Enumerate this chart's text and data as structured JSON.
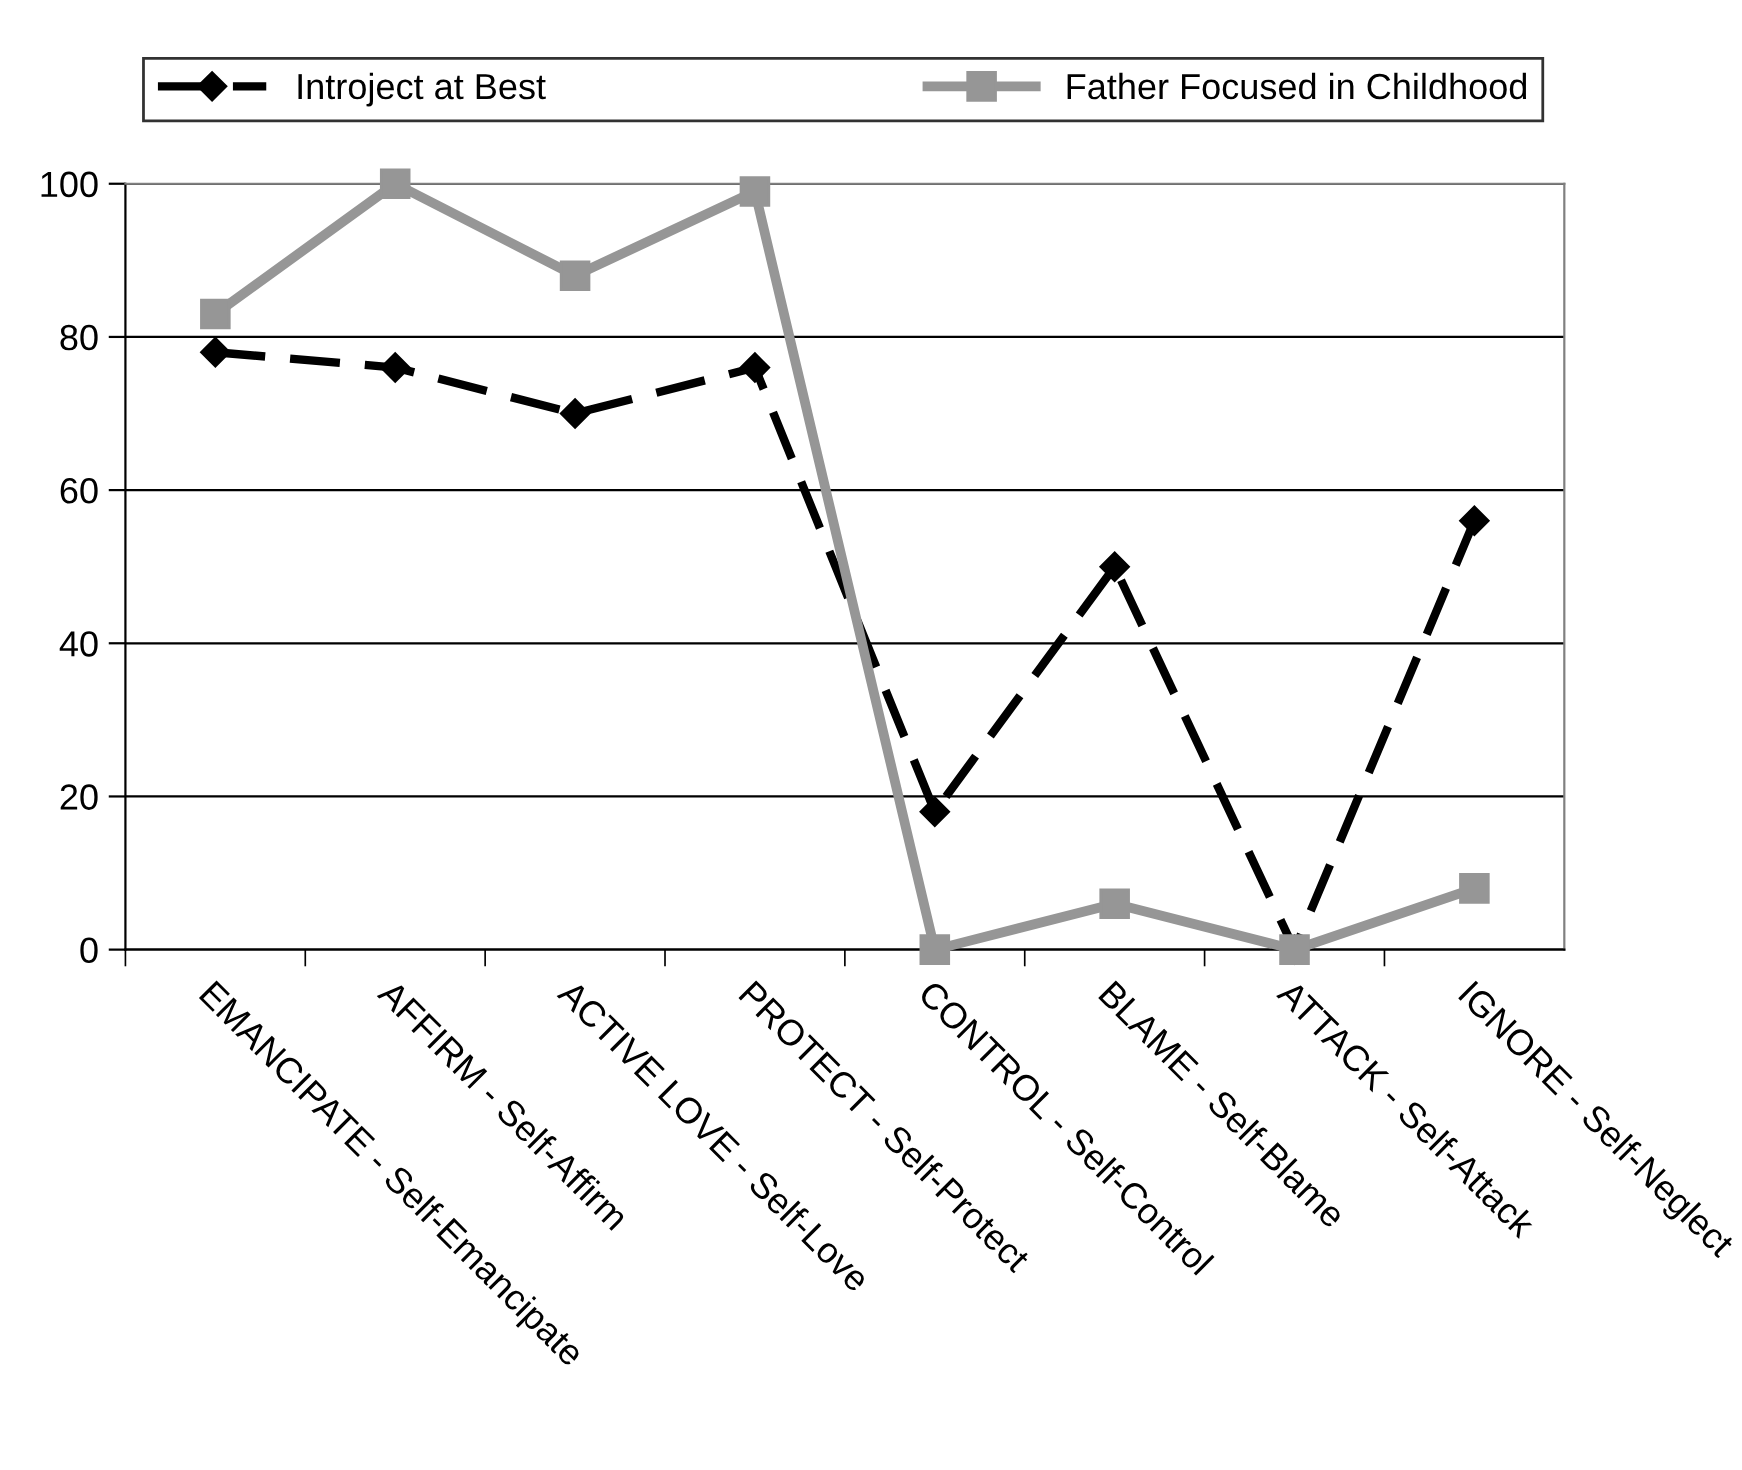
{
  "chart_data": {
    "type": "line",
    "categories": [
      "EMANCIPATE - Self-Emancipate",
      "AFFIRM - Self-Affirm",
      "ACTIVE LOVE - Self-Love",
      "PROTECT - Self-Protect",
      "CONTROL - Self-Control",
      "BLAME - Self-Blame",
      "ATTACK - Self-Attack",
      "IGNORE - Self-Neglect"
    ],
    "series": [
      {
        "name": "Introject at Best",
        "color": "#000000",
        "marker": "diamond",
        "line_style": "dashed",
        "values": [
          78,
          76,
          70,
          76,
          18,
          50,
          0,
          56
        ]
      },
      {
        "name": "Father Focused in Childhood",
        "color": "#969696",
        "marker": "square",
        "line_style": "solid",
        "values": [
          83,
          100,
          88,
          99,
          0,
          6,
          0,
          8
        ]
      }
    ],
    "ylim": [
      0,
      100
    ],
    "yticks": [
      0,
      20,
      40,
      60,
      80,
      100
    ],
    "grid": "y",
    "legend": "top"
  }
}
